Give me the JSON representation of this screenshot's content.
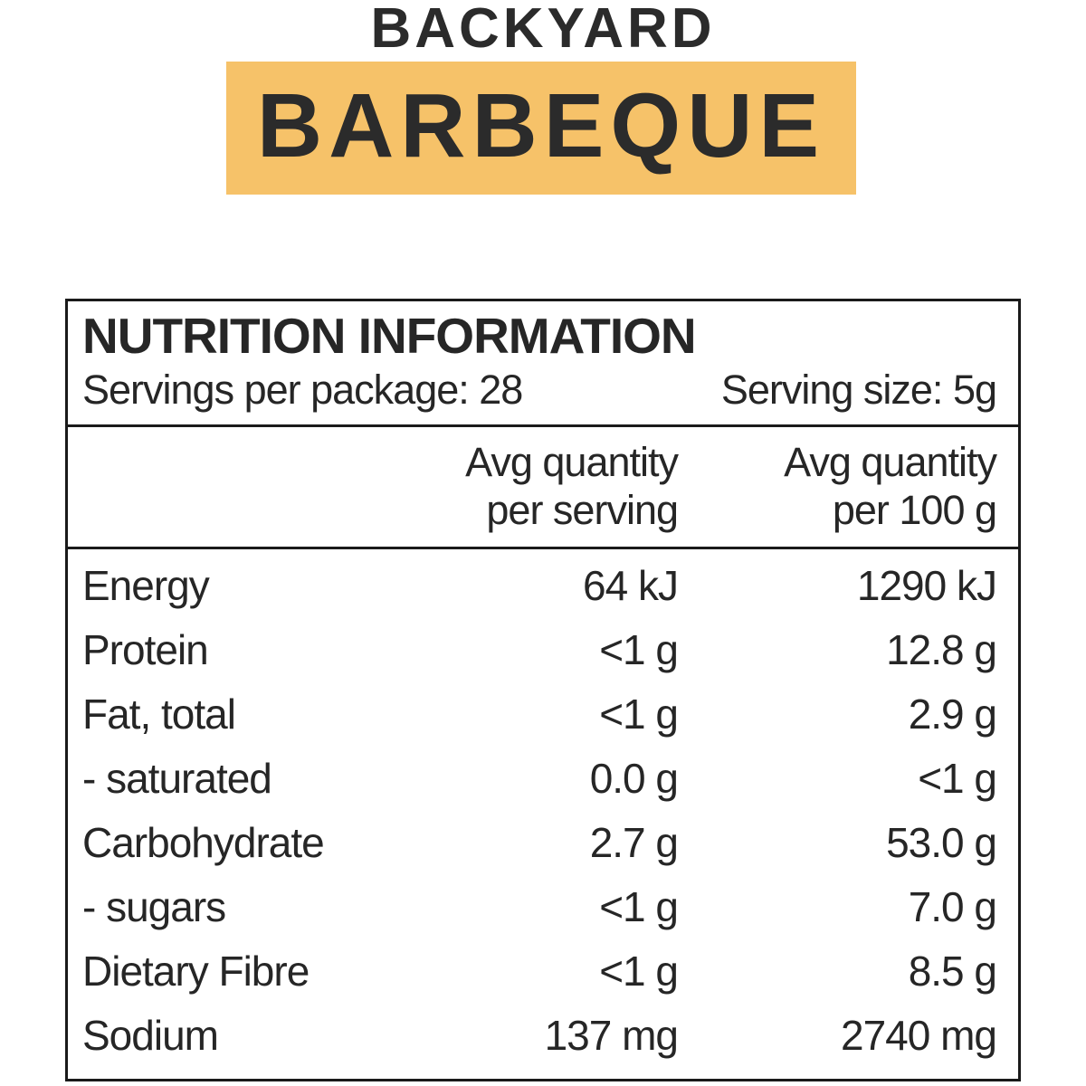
{
  "colors": {
    "highlight_band": "#F6C269",
    "ink": "#262626",
    "panel_border": "#1A1A1A",
    "background": "#FFFFFF"
  },
  "brand": {
    "line1": "BACKYARD",
    "line2": "BARBEQUE"
  },
  "nutrition_panel": {
    "title": "NUTRITION INFORMATION",
    "servings_per_package": "Servings per package: 28",
    "serving_size": "Serving size: 5g",
    "column_headers": {
      "per_serving": {
        "line1": "Avg quantity",
        "line2": "per serving"
      },
      "per_100g": {
        "line1": "Avg quantity",
        "line2": "per 100 g"
      }
    },
    "rows": [
      {
        "label": "Energy",
        "per_serving": "64 kJ",
        "per_100g": "1290 kJ"
      },
      {
        "label": "Protein",
        "per_serving": "<1 g",
        "per_100g": "12.8 g"
      },
      {
        "label": "Fat, total",
        "per_serving": "<1 g",
        "per_100g": "2.9 g"
      },
      {
        "label": "- saturated",
        "per_serving": "0.0 g",
        "per_100g": "<1 g"
      },
      {
        "label": "Carbohydrate",
        "per_serving": "2.7 g",
        "per_100g": "53.0 g"
      },
      {
        "label": "- sugars",
        "per_serving": "<1 g",
        "per_100g": "7.0 g"
      },
      {
        "label": "Dietary Fibre",
        "per_serving": "<1 g",
        "per_100g": "8.5 g"
      },
      {
        "label": "Sodium",
        "per_serving": "137 mg",
        "per_100g": "2740 mg"
      }
    ]
  }
}
